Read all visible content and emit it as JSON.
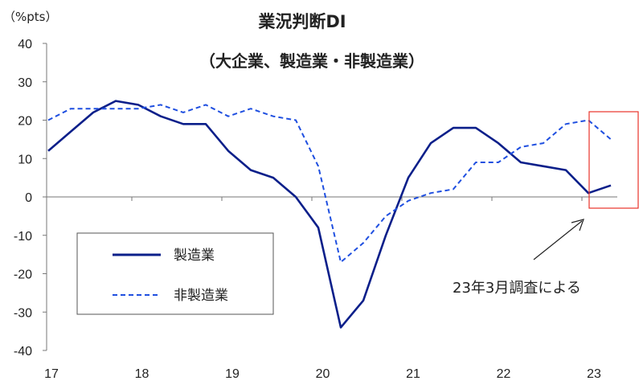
{
  "chart_data": {
    "type": "line",
    "title": "業況判断DI",
    "subtitle": "（大企業、製造業・非製造業）",
    "unit_label": "（%pts）",
    "ylim": [
      -40,
      40
    ],
    "y_ticks": [
      40,
      30,
      20,
      10,
      0,
      -10,
      -20,
      -30,
      -40
    ],
    "x_tick_labels": [
      "17",
      "18",
      "19",
      "20",
      "21",
      "22",
      "23"
    ],
    "x": [
      "17Q1",
      "17Q2",
      "17Q3",
      "17Q4",
      "18Q1",
      "18Q2",
      "18Q3",
      "18Q4",
      "19Q1",
      "19Q2",
      "19Q3",
      "19Q4",
      "20Q1",
      "20Q2",
      "20Q3",
      "20Q4",
      "21Q1",
      "21Q2",
      "21Q3",
      "21Q4",
      "22Q1",
      "22Q2",
      "22Q3",
      "22Q4",
      "23Q1",
      "23Q2"
    ],
    "series": [
      {
        "name": "製造業",
        "style": "solid",
        "color": "#0b1f8a",
        "values": [
          12,
          17,
          22,
          25,
          24,
          21,
          19,
          19,
          12,
          7,
          5,
          0,
          -8,
          -34,
          -27,
          -10,
          5,
          14,
          18,
          18,
          14,
          9,
          8,
          7,
          1,
          3
        ]
      },
      {
        "name": "非製造業",
        "style": "dashed",
        "color": "#1f4fe0",
        "values": [
          20,
          23,
          23,
          23,
          23,
          24,
          22,
          24,
          21,
          23,
          21,
          20,
          8,
          -17,
          -12,
          -5,
          -1,
          1,
          2,
          9,
          9,
          13,
          14,
          19,
          20,
          15
        ]
      }
    ],
    "legend_position": "bottom-left",
    "grid": false,
    "annotation": "23年3月調査による",
    "highlight_color": "#e8332a"
  }
}
